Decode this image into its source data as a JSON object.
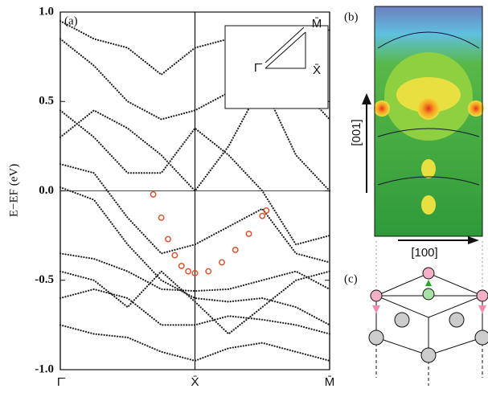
{
  "chart_data": {
    "type": "line",
    "panel_label": "(a)",
    "ylabel": "E−EF (eV)",
    "xlim": [
      0,
      2
    ],
    "ylim": [
      -1,
      1
    ],
    "yticks": [
      {
        "value": 1,
        "label": "1.0"
      },
      0.5,
      {
        "value": 0,
        "label": "0.0"
      },
      -0.5,
      {
        "value": -1,
        "label": "-1.0"
      }
    ],
    "xticks": [
      {
        "value": 0,
        "label": "Γ̄"
      },
      {
        "value": 1,
        "label": "X̄"
      },
      {
        "value": 2,
        "label": "M̄"
      }
    ],
    "inset_labels": [
      "Γ̄",
      "X̄",
      "M̄"
    ],
    "x": [
      0,
      0.25,
      0.5,
      0.75,
      1,
      1.25,
      1.5,
      1.75,
      2
    ],
    "series": [
      {
        "color": "#222222",
        "values": [
          0.02,
          -0.05,
          -0.3,
          -0.5,
          -0.6,
          -0.62,
          -0.6,
          -0.65,
          -0.75
        ]
      },
      {
        "color": "#222222",
        "values": [
          -0.35,
          -0.38,
          -0.45,
          -0.55,
          -0.56,
          -0.55,
          -0.5,
          -0.45,
          -0.55
        ]
      },
      {
        "color": "#222222",
        "values": [
          -0.6,
          -0.55,
          -0.6,
          -0.75,
          -0.75,
          -0.7,
          -0.72,
          -0.75,
          -0.8
        ]
      },
      {
        "color": "#222222",
        "values": [
          -0.75,
          -0.8,
          -0.82,
          -0.9,
          -0.95,
          -0.88,
          -0.85,
          -0.9,
          -0.95
        ]
      },
      {
        "color": "#222222",
        "values": [
          0.15,
          0.1,
          -0.15,
          -0.35,
          -0.3,
          -0.2,
          -0.1,
          -0.35,
          -0.4
        ]
      },
      {
        "color": "#222222",
        "values": [
          0.45,
          0.3,
          0.1,
          0.1,
          0.35,
          0.2,
          0.0,
          -0.3,
          -0.25
        ]
      },
      {
        "color": "#222222",
        "values": [
          0.85,
          0.7,
          0.5,
          0.4,
          0.45,
          0.55,
          0.6,
          0.2,
          0.0
        ]
      },
      {
        "color": "#222222",
        "values": [
          0.95,
          0.85,
          0.8,
          0.65,
          0.8,
          0.85,
          0.9,
          0.6,
          0.4
        ]
      },
      {
        "color": "#222222",
        "values": [
          0.3,
          0.45,
          0.35,
          0.2,
          0.0,
          0.25,
          0.6,
          0.8,
          0.9
        ]
      },
      {
        "color": "#222222",
        "values": [
          -0.45,
          -0.5,
          -0.65,
          -0.45,
          -0.62,
          -0.8,
          -0.65,
          -0.5,
          -0.45
        ]
      },
      {
        "color": "#d9542e",
        "marker": "circle",
        "x": [
          0.69,
          0.75,
          0.8,
          0.85,
          0.9,
          0.95,
          1.0,
          1.1,
          1.2,
          1.3,
          1.4,
          1.5,
          1.53
        ],
        "values": [
          -0.02,
          -0.15,
          -0.27,
          -0.36,
          -0.42,
          -0.45,
          -0.46,
          -0.45,
          -0.4,
          -0.33,
          -0.24,
          -0.14,
          -0.11
        ]
      }
    ]
  },
  "panel_b": {
    "label": "(b)",
    "vertical_axis": "[001]",
    "horizontal_axis": "[100]"
  },
  "panel_c": {
    "label": "(c)"
  }
}
